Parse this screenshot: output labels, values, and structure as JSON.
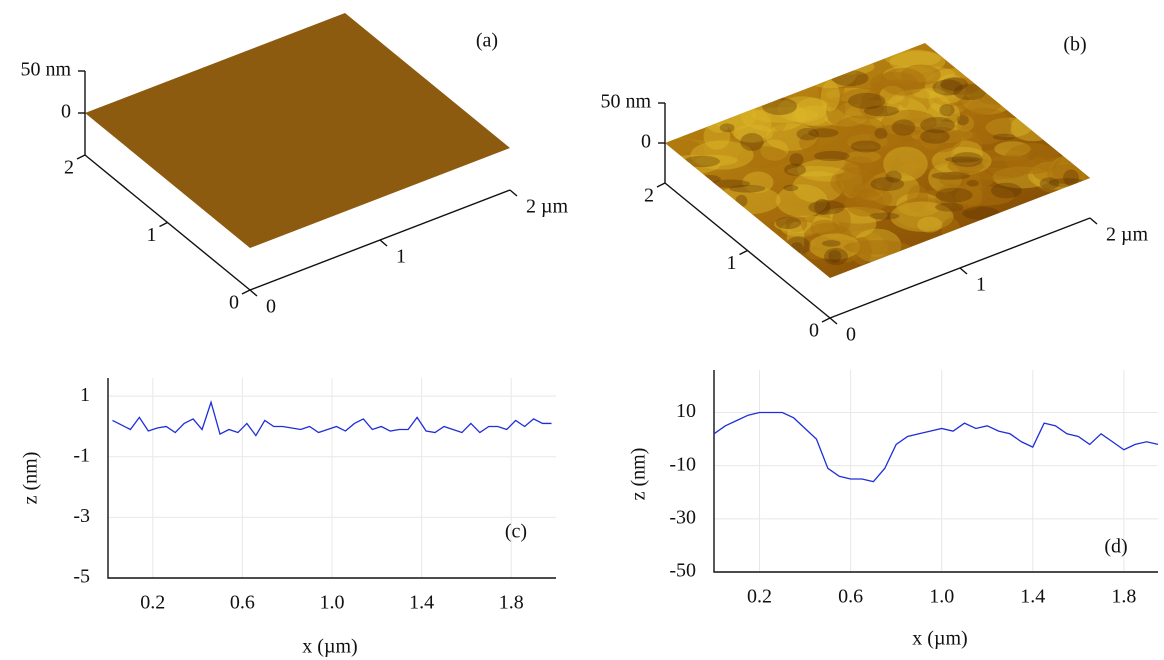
{
  "chart_data": [
    {
      "type": "surface",
      "annotation": "(a)",
      "xlim": [
        0,
        2
      ],
      "ylim": [
        0,
        2
      ],
      "zlim": [
        -50,
        50
      ],
      "xticks": [
        0,
        1,
        {
          "value": 2,
          "label": "2 µm"
        }
      ],
      "yticks": [
        0,
        1,
        2
      ],
      "zticks": [
        0,
        {
          "value": 50,
          "label": "50 nm"
        }
      ],
      "color": "#8d5b10"
    },
    {
      "type": "surface",
      "annotation": "(b)",
      "xlim": [
        0,
        2
      ],
      "ylim": [
        0,
        2
      ],
      "zlim": [
        -50,
        50
      ],
      "xticks": [
        0,
        1,
        {
          "value": 2,
          "label": "2 µm"
        }
      ],
      "yticks": [
        0,
        1,
        2
      ],
      "zticks": [
        0,
        {
          "value": 50,
          "label": "50 nm"
        }
      ],
      "color": "#a9700c"
    },
    {
      "type": "line",
      "annotation": "(c)",
      "xlabel": "x (µm)",
      "ylabel": "z (nm)",
      "color": "#1f2fd8",
      "grid": true,
      "xlim": [
        0,
        2
      ],
      "ylim": [
        -5,
        1.6
      ],
      "xticks": [
        0.2,
        0.6,
        {
          "value": 1.0,
          "label": "1.0"
        },
        1.4,
        1.8
      ],
      "yticks": [
        1,
        -1,
        -3,
        -5
      ],
      "x": [
        0.02,
        0.06,
        0.1,
        0.14,
        0.18,
        0.22,
        0.26,
        0.3,
        0.34,
        0.38,
        0.42,
        0.46,
        0.5,
        0.54,
        0.58,
        0.62,
        0.66,
        0.7,
        0.74,
        0.78,
        0.82,
        0.86,
        0.9,
        0.94,
        0.98,
        1.02,
        1.06,
        1.1,
        1.14,
        1.18,
        1.22,
        1.26,
        1.3,
        1.34,
        1.38,
        1.42,
        1.46,
        1.5,
        1.54,
        1.58,
        1.62,
        1.66,
        1.7,
        1.74,
        1.78,
        1.82,
        1.86,
        1.9,
        1.94,
        1.98
      ],
      "values": [
        0.2,
        0.05,
        -0.1,
        0.3,
        -0.15,
        -0.05,
        0,
        -0.2,
        0.1,
        0.25,
        -0.1,
        0.8,
        -0.25,
        -0.1,
        -0.2,
        0.1,
        -0.3,
        0.2,
        0,
        0,
        -0.05,
        -0.1,
        0,
        -0.2,
        -0.1,
        0,
        -0.15,
        0.1,
        0.25,
        -0.1,
        0,
        -0.15,
        -0.1,
        -0.1,
        0.3,
        -0.15,
        -0.2,
        0,
        -0.1,
        -0.2,
        0.1,
        -0.2,
        0,
        0,
        -0.1,
        0.2,
        0,
        0.25,
        0.1,
        0.1
      ]
    },
    {
      "type": "line",
      "annotation": "(d)",
      "xlabel": "x (µm)",
      "ylabel": "z (nm)",
      "color": "#1f2fd8",
      "grid": true,
      "xlim": [
        0,
        1.95
      ],
      "ylim": [
        -50,
        26
      ],
      "xticks": [
        0.2,
        0.6,
        {
          "value": 1.0,
          "label": "1.0"
        },
        1.4,
        1.8
      ],
      "yticks": [
        10,
        -10,
        -30,
        -50
      ],
      "x": [
        0,
        0.05,
        0.1,
        0.15,
        0.2,
        0.25,
        0.3,
        0.35,
        0.4,
        0.45,
        0.5,
        0.55,
        0.6,
        0.65,
        0.7,
        0.75,
        0.8,
        0.85,
        0.9,
        0.95,
        1.0,
        1.05,
        1.1,
        1.15,
        1.2,
        1.25,
        1.3,
        1.35,
        1.4,
        1.45,
        1.5,
        1.55,
        1.6,
        1.65,
        1.7,
        1.75,
        1.8,
        1.85,
        1.9,
        1.95
      ],
      "values": [
        2,
        5,
        7,
        9,
        10,
        10,
        10,
        8,
        4,
        0,
        -11,
        -14,
        -15,
        -15,
        -16,
        -11,
        -2,
        1,
        2,
        3,
        4,
        3,
        6,
        4,
        5,
        3,
        2,
        -1,
        -3,
        6,
        5,
        2,
        1,
        -2,
        2,
        -1,
        -4,
        -2,
        -1,
        -2
      ]
    }
  ]
}
